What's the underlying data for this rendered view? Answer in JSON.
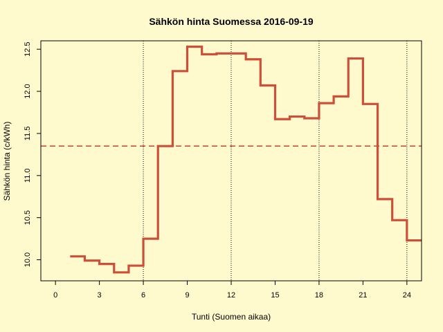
{
  "chart_data": {
    "type": "line",
    "step": true,
    "title": "Sähkön hinta Suomessa 2016-09-19",
    "xlabel": "Tunti (Suomen aikaa)",
    "ylabel": "Sähkön hinta (c/kWh)",
    "xlim": [
      -1,
      25
    ],
    "ylim": [
      9.75,
      12.6
    ],
    "x_ticks": [
      0,
      3,
      6,
      9,
      12,
      15,
      18,
      21,
      24
    ],
    "y_ticks": [
      "10.0",
      "10.5",
      "11.0",
      "11.5",
      "12.0",
      "12.5"
    ],
    "x_gridlines": [
      6,
      12,
      18,
      24
    ],
    "series": [
      {
        "x": [
          1,
          2,
          3,
          4,
          5,
          6,
          7,
          8,
          9,
          10,
          11,
          12,
          13,
          14,
          15,
          16,
          17,
          18,
          19,
          20,
          21,
          22,
          23,
          24
        ],
        "values": [
          10.04,
          9.99,
          9.95,
          9.85,
          9.93,
          10.25,
          11.35,
          12.24,
          12.53,
          12.44,
          12.45,
          12.45,
          12.38,
          12.07,
          11.67,
          11.7,
          11.68,
          11.86,
          11.94,
          12.39,
          11.85,
          10.72,
          10.47,
          10.23
        ],
        "color": "#cd4f39"
      }
    ],
    "mean_line": {
      "value": 11.35,
      "color": "#cd4f39",
      "style": "dashed"
    },
    "background": "#fffacd"
  }
}
